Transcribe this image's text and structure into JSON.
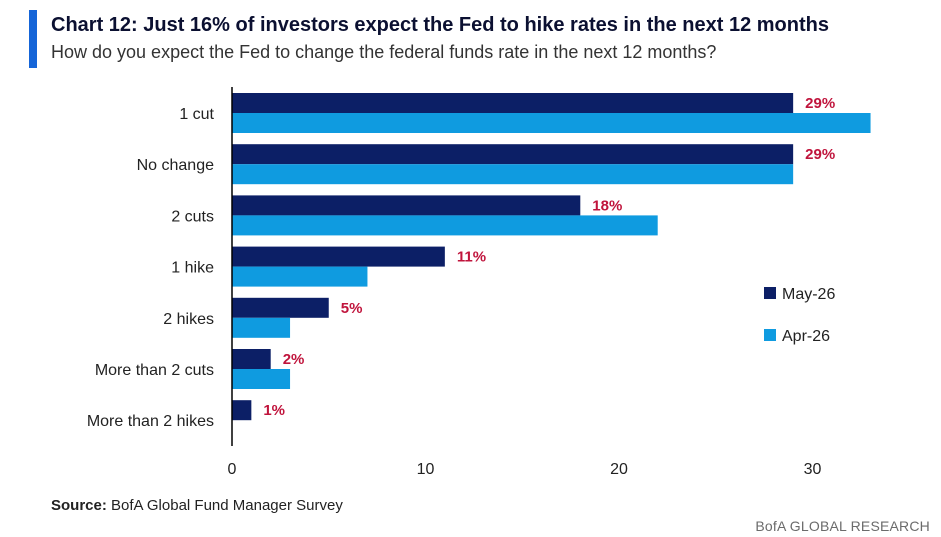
{
  "header": {
    "title": "Chart 12: Just 16% of investors expect the Fed to hike rates in the next 12 months",
    "subtitle": "How do you expect the Fed to change the federal funds rate in the next 12 months?"
  },
  "footer": {
    "source_label": "Source:",
    "source_text": "BofA Global Fund Manager Survey",
    "brand": "BofA GLOBAL RESEARCH"
  },
  "colors": {
    "accent": "#1565d8",
    "may_series": "#0c1f66",
    "apr_series": "#0f9be0",
    "data_label": "#c0143c"
  },
  "chart_data": {
    "type": "bar",
    "orientation": "horizontal",
    "categories": [
      "1 cut",
      "No change",
      "2 cuts",
      "1 hike",
      "2 hikes",
      "More than 2 cuts",
      "More than 2 hikes"
    ],
    "series": [
      {
        "name": "May-26",
        "values": [
          29,
          29,
          18,
          11,
          5,
          2,
          1
        ],
        "labels": [
          "29%",
          "29%",
          "18%",
          "11%",
          "5%",
          "2%",
          "1%"
        ]
      },
      {
        "name": "Apr-26",
        "values": [
          33,
          29,
          22,
          7,
          3,
          3,
          0
        ]
      }
    ],
    "xlim": [
      0,
      33
    ],
    "xticks": [
      "0",
      "10",
      "20",
      "30"
    ],
    "grid": false,
    "legend_position": "right"
  }
}
